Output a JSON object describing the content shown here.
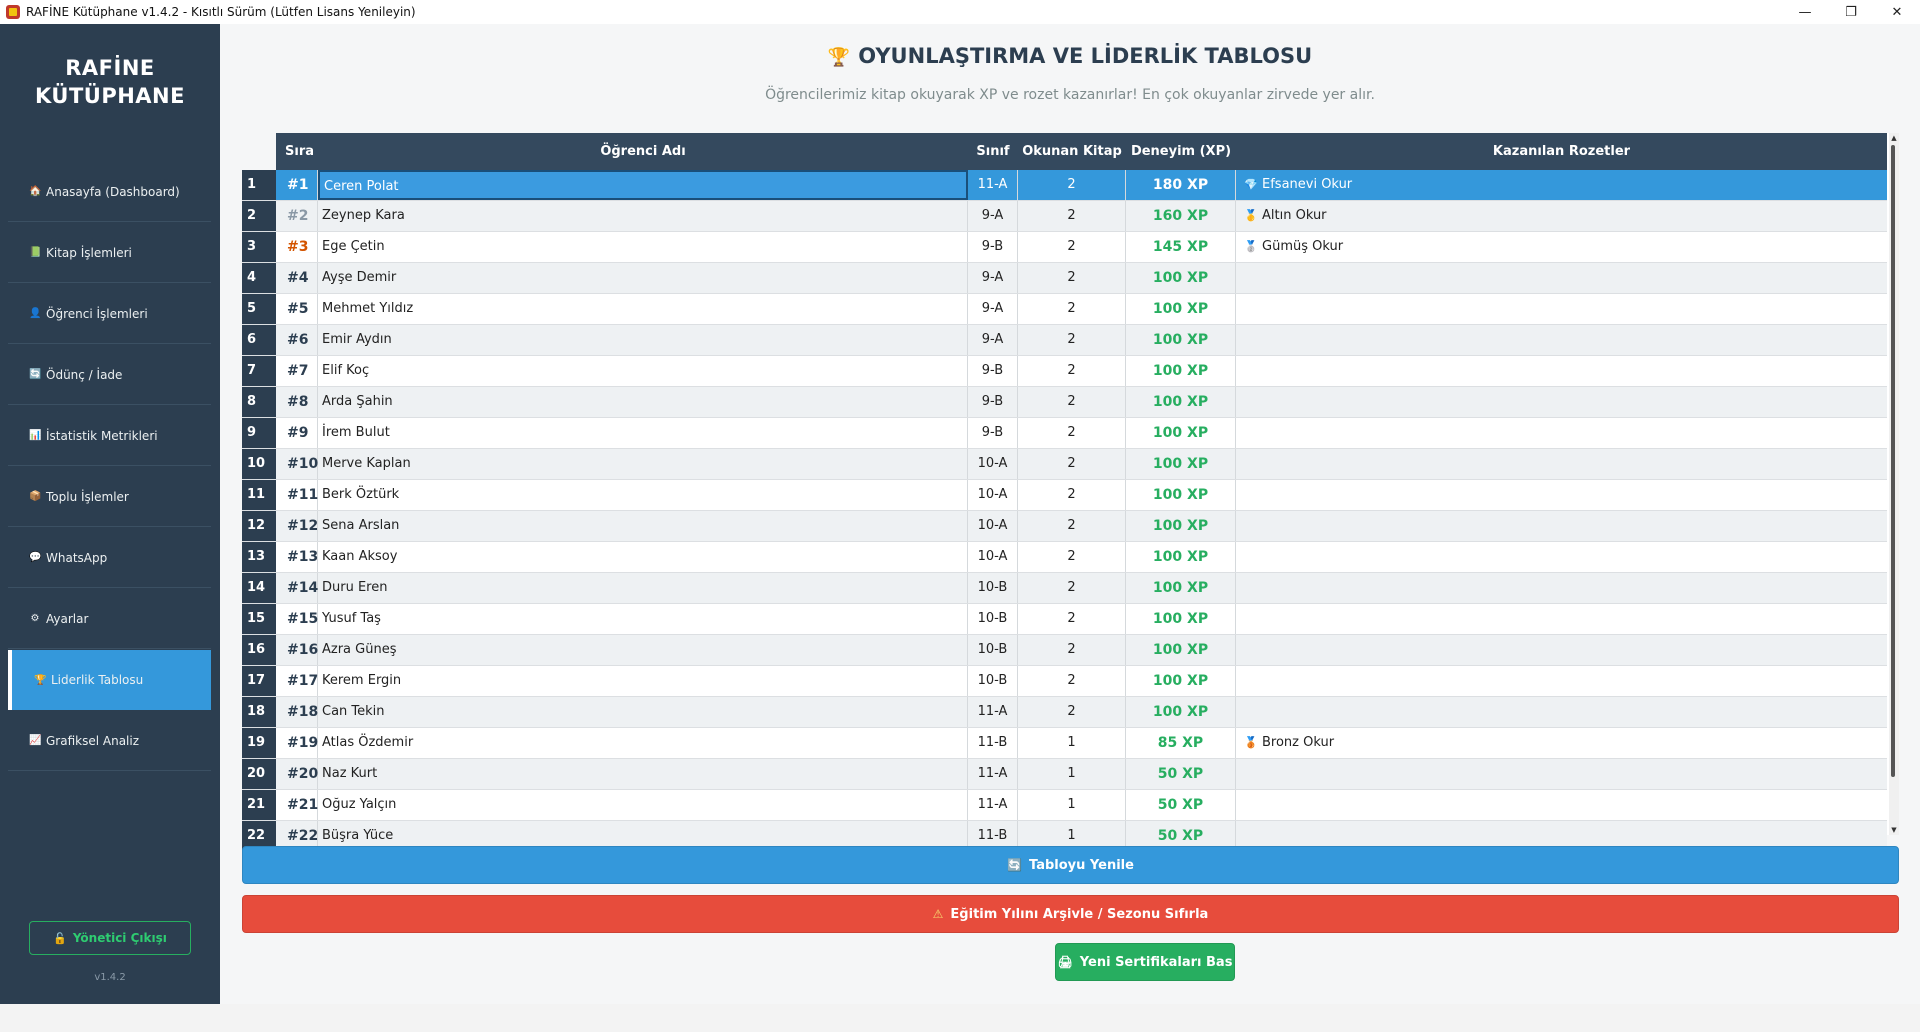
{
  "window": {
    "title": "RAFİNE Kütüphane v1.4.2 - Kısıtlı Sürüm (Lütfen Lisans Yenileyin)",
    "minimize": "—",
    "maximize": "❐",
    "close": "✕"
  },
  "sidebar": {
    "brand_line1": "RAFİNE",
    "brand_line2": "KÜTÜPHANE",
    "items": [
      {
        "icon": "home-icon",
        "glyph": "🏠",
        "label": "Anasayfa (Dashboard)"
      },
      {
        "icon": "book-icon",
        "glyph": "📗",
        "label": "Kitap İşlemleri"
      },
      {
        "icon": "student-icon",
        "glyph": "👤",
        "label": "Öğrenci İşlemleri"
      },
      {
        "icon": "exchange-icon",
        "glyph": "🔄",
        "label": "Ödünç / İade"
      },
      {
        "icon": "stats-icon",
        "glyph": "📊",
        "label": "İstatistik Metrikleri"
      },
      {
        "icon": "bulk-icon",
        "glyph": "📦",
        "label": "Toplu İşlemler"
      },
      {
        "icon": "chat-icon",
        "glyph": "💬",
        "label": "WhatsApp"
      },
      {
        "icon": "gear-icon",
        "glyph": "⚙",
        "label": "Ayarlar"
      },
      {
        "icon": "trophy-icon",
        "glyph": "🏆",
        "label": "Liderlik Tablosu",
        "active": true
      },
      {
        "icon": "chart-icon",
        "glyph": "📈",
        "label": "Grafiksel Analiz"
      }
    ],
    "logout_label": "Yönetici Çıkışı",
    "logout_glyph": "🔓",
    "version": "v1.4.2"
  },
  "header": {
    "title": "OYUNLAŞTIRMA VE LİDERLİK TABLOSU",
    "title_glyph": "🏆",
    "subtitle": "Öğrencilerimiz kitap okuyarak XP ve rozet kazanırlar! En çok okuyanlar zirvede yer alır."
  },
  "table": {
    "columns": {
      "rank": "Sıra",
      "name": "Öğrenci Adı",
      "class": "Sınıf",
      "books": "Okunan Kitap",
      "xp": "Deneyim (XP)",
      "badges": "Kazanılan Rozetler"
    },
    "rows": [
      {
        "n": "1",
        "rank": "#1",
        "name": "Ceren Polat",
        "class": "11-A",
        "books": "2",
        "xp": "180 XP",
        "badge": "Efsanevi Okur",
        "badge_glyph": "💎"
      },
      {
        "n": "2",
        "rank": "#2",
        "name": "Zeynep Kara",
        "class": "9-A",
        "books": "2",
        "xp": "160 XP",
        "badge": "Altın Okur",
        "badge_glyph": "🥇"
      },
      {
        "n": "3",
        "rank": "#3",
        "name": "Ege Çetin",
        "class": "9-B",
        "books": "2",
        "xp": "145 XP",
        "badge": "Gümüş Okur",
        "badge_glyph": "🥈"
      },
      {
        "n": "4",
        "rank": "#4",
        "name": "Ayşe Demir",
        "class": "9-A",
        "books": "2",
        "xp": "100 XP",
        "badge": "",
        "badge_glyph": ""
      },
      {
        "n": "5",
        "rank": "#5",
        "name": "Mehmet Yıldız",
        "class": "9-A",
        "books": "2",
        "xp": "100 XP",
        "badge": "",
        "badge_glyph": ""
      },
      {
        "n": "6",
        "rank": "#6",
        "name": "Emir Aydın",
        "class": "9-A",
        "books": "2",
        "xp": "100 XP",
        "badge": "",
        "badge_glyph": ""
      },
      {
        "n": "7",
        "rank": "#7",
        "name": "Elif Koç",
        "class": "9-B",
        "books": "2",
        "xp": "100 XP",
        "badge": "",
        "badge_glyph": ""
      },
      {
        "n": "8",
        "rank": "#8",
        "name": "Arda Şahin",
        "class": "9-B",
        "books": "2",
        "xp": "100 XP",
        "badge": "",
        "badge_glyph": ""
      },
      {
        "n": "9",
        "rank": "#9",
        "name": "İrem Bulut",
        "class": "9-B",
        "books": "2",
        "xp": "100 XP",
        "badge": "",
        "badge_glyph": ""
      },
      {
        "n": "10",
        "rank": "#10",
        "name": "Merve Kaplan",
        "class": "10-A",
        "books": "2",
        "xp": "100 XP",
        "badge": "",
        "badge_glyph": ""
      },
      {
        "n": "11",
        "rank": "#11",
        "name": "Berk Öztürk",
        "class": "10-A",
        "books": "2",
        "xp": "100 XP",
        "badge": "",
        "badge_glyph": ""
      },
      {
        "n": "12",
        "rank": "#12",
        "name": "Sena Arslan",
        "class": "10-A",
        "books": "2",
        "xp": "100 XP",
        "badge": "",
        "badge_glyph": ""
      },
      {
        "n": "13",
        "rank": "#13",
        "name": "Kaan Aksoy",
        "class": "10-A",
        "books": "2",
        "xp": "100 XP",
        "badge": "",
        "badge_glyph": ""
      },
      {
        "n": "14",
        "rank": "#14",
        "name": "Duru Eren",
        "class": "10-B",
        "books": "2",
        "xp": "100 XP",
        "badge": "",
        "badge_glyph": ""
      },
      {
        "n": "15",
        "rank": "#15",
        "name": "Yusuf Taş",
        "class": "10-B",
        "books": "2",
        "xp": "100 XP",
        "badge": "",
        "badge_glyph": ""
      },
      {
        "n": "16",
        "rank": "#16",
        "name": "Azra Güneş",
        "class": "10-B",
        "books": "2",
        "xp": "100 XP",
        "badge": "",
        "badge_glyph": ""
      },
      {
        "n": "17",
        "rank": "#17",
        "name": "Kerem Ergin",
        "class": "10-B",
        "books": "2",
        "xp": "100 XP",
        "badge": "",
        "badge_glyph": ""
      },
      {
        "n": "18",
        "rank": "#18",
        "name": "Can Tekin",
        "class": "11-A",
        "books": "2",
        "xp": "100 XP",
        "badge": "",
        "badge_glyph": ""
      },
      {
        "n": "19",
        "rank": "#19",
        "name": "Atlas Özdemir",
        "class": "11-B",
        "books": "1",
        "xp": "85 XP",
        "badge": "Bronz Okur",
        "badge_glyph": "🥉"
      },
      {
        "n": "20",
        "rank": "#20",
        "name": "Naz Kurt",
        "class": "11-A",
        "books": "1",
        "xp": "50 XP",
        "badge": "",
        "badge_glyph": ""
      },
      {
        "n": "21",
        "rank": "#21",
        "name": "Oğuz Yalçın",
        "class": "11-A",
        "books": "1",
        "xp": "50 XP",
        "badge": "",
        "badge_glyph": ""
      },
      {
        "n": "22",
        "rank": "#22",
        "name": "Büşra Yüce",
        "class": "11-B",
        "books": "1",
        "xp": "50 XP",
        "badge": "",
        "badge_glyph": ""
      }
    ],
    "selected_row": 0
  },
  "actions": {
    "refresh_label": "Tabloyu Yenile",
    "refresh_glyph": "🔄",
    "archive_label": "Eğitim Yılını Arşivle / Sezonu Sıfırla",
    "archive_glyph": "⚠",
    "cert_label": "Yeni Sertifikaları Bas",
    "cert_glyph": "🖨"
  },
  "colors": {
    "sidebar_bg": "#2c3e50",
    "accent_blue": "#3498db",
    "danger_red": "#e74c3c",
    "success_green": "#27ae60",
    "xp_green": "#27ae60"
  }
}
